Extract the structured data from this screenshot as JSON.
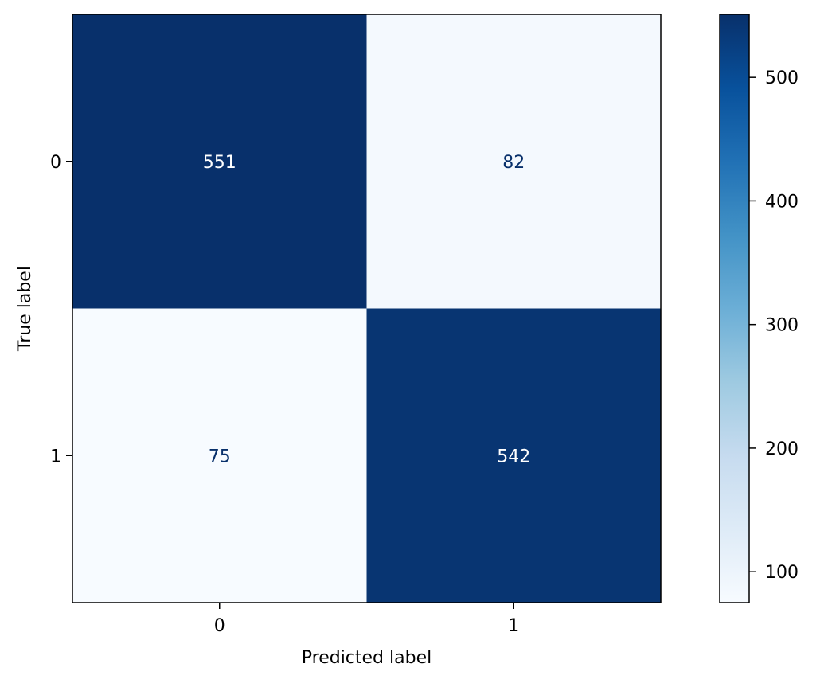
{
  "chart_data": {
    "type": "heatmap",
    "title": "",
    "xlabel": "Predicted label",
    "ylabel": "True label",
    "x_categories": [
      "0",
      "1"
    ],
    "y_categories": [
      "0",
      "1"
    ],
    "values": [
      [
        551,
        82
      ],
      [
        75,
        542
      ]
    ],
    "colormap": "Blues",
    "colorbar": {
      "range": [
        75,
        551
      ],
      "ticks": [
        100,
        200,
        300,
        400,
        500
      ]
    },
    "colors": {
      "low": "#f7fbff",
      "high": "#08306b",
      "text_on_dark": "#ffffff",
      "text_on_light": "#08306b"
    }
  }
}
